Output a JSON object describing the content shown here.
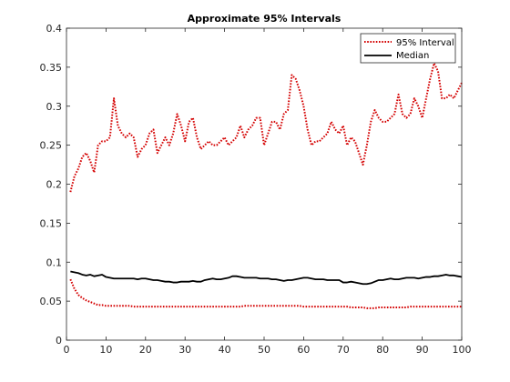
{
  "chart_data": {
    "type": "line",
    "title": "Approximate 95% Intervals",
    "xlabel": "",
    "ylabel": "",
    "xlim": [
      0,
      100
    ],
    "ylim": [
      0,
      0.4
    ],
    "xticks": [
      0,
      10,
      20,
      30,
      40,
      50,
      60,
      70,
      80,
      90,
      100
    ],
    "yticks": [
      0,
      0.05,
      0.1,
      0.15,
      0.2,
      0.25,
      0.3,
      0.35,
      0.4
    ],
    "xtick_labels": [
      "0",
      "10",
      "20",
      "30",
      "40",
      "50",
      "60",
      "70",
      "80",
      "90",
      "100"
    ],
    "ytick_labels": [
      "0",
      "0.05",
      "0.1",
      "0.15",
      "0.2",
      "0.25",
      "0.3",
      "0.35",
      "0.4"
    ],
    "grid": false,
    "legend_position": "top-right",
    "x": [
      1,
      2,
      3,
      4,
      5,
      6,
      7,
      8,
      9,
      10,
      11,
      12,
      13,
      14,
      15,
      16,
      17,
      18,
      19,
      20,
      21,
      22,
      23,
      24,
      25,
      26,
      27,
      28,
      29,
      30,
      31,
      32,
      33,
      34,
      35,
      36,
      37,
      38,
      39,
      40,
      41,
      42,
      43,
      44,
      45,
      46,
      47,
      48,
      49,
      50,
      51,
      52,
      53,
      54,
      55,
      56,
      57,
      58,
      59,
      60,
      61,
      62,
      63,
      64,
      65,
      66,
      67,
      68,
      69,
      70,
      71,
      72,
      73,
      74,
      75,
      76,
      77,
      78,
      79,
      80,
      81,
      82,
      83,
      84,
      85,
      86,
      87,
      88,
      89,
      90,
      91,
      92,
      93,
      94,
      95,
      96,
      97,
      98,
      99,
      100
    ],
    "series": [
      {
        "name": "95% Interval",
        "role": "upper",
        "color": "#d40000",
        "style": "dotted",
        "values": [
          0.19,
          0.21,
          0.22,
          0.235,
          0.24,
          0.23,
          0.215,
          0.25,
          0.255,
          0.255,
          0.26,
          0.31,
          0.275,
          0.265,
          0.26,
          0.265,
          0.26,
          0.235,
          0.245,
          0.25,
          0.265,
          0.27,
          0.24,
          0.25,
          0.26,
          0.25,
          0.265,
          0.29,
          0.275,
          0.255,
          0.28,
          0.285,
          0.26,
          0.245,
          0.25,
          0.255,
          0.25,
          0.25,
          0.255,
          0.26,
          0.25,
          0.255,
          0.26,
          0.275,
          0.26,
          0.27,
          0.275,
          0.285,
          0.285,
          0.25,
          0.265,
          0.28,
          0.28,
          0.27,
          0.29,
          0.295,
          0.34,
          0.335,
          0.32,
          0.3,
          0.27,
          0.25,
          0.255,
          0.255,
          0.26,
          0.265,
          0.28,
          0.27,
          0.265,
          0.275,
          0.25,
          0.26,
          0.255,
          0.24,
          0.225,
          0.25,
          0.28,
          0.295,
          0.285,
          0.28,
          0.28,
          0.285,
          0.29,
          0.315,
          0.29,
          0.285,
          0.29,
          0.31,
          0.3,
          0.285,
          0.31,
          0.335,
          0.355,
          0.345,
          0.31,
          0.31,
          0.315,
          0.31,
          0.32,
          0.33
        ]
      },
      {
        "name": "",
        "role": "lower",
        "color": "#d40000",
        "style": "dotted",
        "values": [
          0.078,
          0.066,
          0.058,
          0.054,
          0.051,
          0.049,
          0.047,
          0.045,
          0.045,
          0.044,
          0.044,
          0.044,
          0.044,
          0.044,
          0.044,
          0.044,
          0.043,
          0.043,
          0.043,
          0.043,
          0.043,
          0.043,
          0.043,
          0.043,
          0.043,
          0.043,
          0.043,
          0.043,
          0.043,
          0.043,
          0.043,
          0.043,
          0.043,
          0.043,
          0.043,
          0.043,
          0.043,
          0.043,
          0.043,
          0.043,
          0.043,
          0.043,
          0.043,
          0.043,
          0.044,
          0.044,
          0.044,
          0.044,
          0.044,
          0.044,
          0.044,
          0.044,
          0.044,
          0.044,
          0.044,
          0.044,
          0.044,
          0.044,
          0.044,
          0.043,
          0.043,
          0.043,
          0.043,
          0.043,
          0.043,
          0.043,
          0.043,
          0.043,
          0.043,
          0.043,
          0.043,
          0.042,
          0.042,
          0.042,
          0.042,
          0.041,
          0.041,
          0.041,
          0.042,
          0.042,
          0.042,
          0.042,
          0.042,
          0.042,
          0.042,
          0.042,
          0.043,
          0.043,
          0.043,
          0.043,
          0.043,
          0.043,
          0.043,
          0.043,
          0.043,
          0.043,
          0.043,
          0.043,
          0.043,
          0.043
        ]
      },
      {
        "name": "Median",
        "role": "median",
        "color": "#000000",
        "style": "solid",
        "values": [
          0.088,
          0.087,
          0.086,
          0.084,
          0.083,
          0.084,
          0.082,
          0.083,
          0.084,
          0.081,
          0.08,
          0.079,
          0.079,
          0.079,
          0.079,
          0.079,
          0.079,
          0.078,
          0.079,
          0.079,
          0.078,
          0.077,
          0.077,
          0.076,
          0.075,
          0.075,
          0.074,
          0.074,
          0.075,
          0.075,
          0.075,
          0.076,
          0.075,
          0.075,
          0.077,
          0.078,
          0.079,
          0.078,
          0.078,
          0.079,
          0.08,
          0.082,
          0.082,
          0.081,
          0.08,
          0.08,
          0.08,
          0.08,
          0.079,
          0.079,
          0.079,
          0.078,
          0.078,
          0.077,
          0.076,
          0.077,
          0.077,
          0.078,
          0.079,
          0.08,
          0.08,
          0.079,
          0.078,
          0.078,
          0.078,
          0.077,
          0.077,
          0.077,
          0.077,
          0.074,
          0.074,
          0.075,
          0.074,
          0.073,
          0.072,
          0.072,
          0.073,
          0.075,
          0.077,
          0.077,
          0.078,
          0.079,
          0.078,
          0.078,
          0.079,
          0.08,
          0.08,
          0.08,
          0.079,
          0.08,
          0.081,
          0.081,
          0.082,
          0.082,
          0.083,
          0.084,
          0.083,
          0.083,
          0.082,
          0.081
        ]
      }
    ],
    "legend": [
      {
        "label": "95% Interval",
        "color": "#d40000",
        "style": "dotted"
      },
      {
        "label": "Median",
        "color": "#000000",
        "style": "solid"
      }
    ]
  }
}
